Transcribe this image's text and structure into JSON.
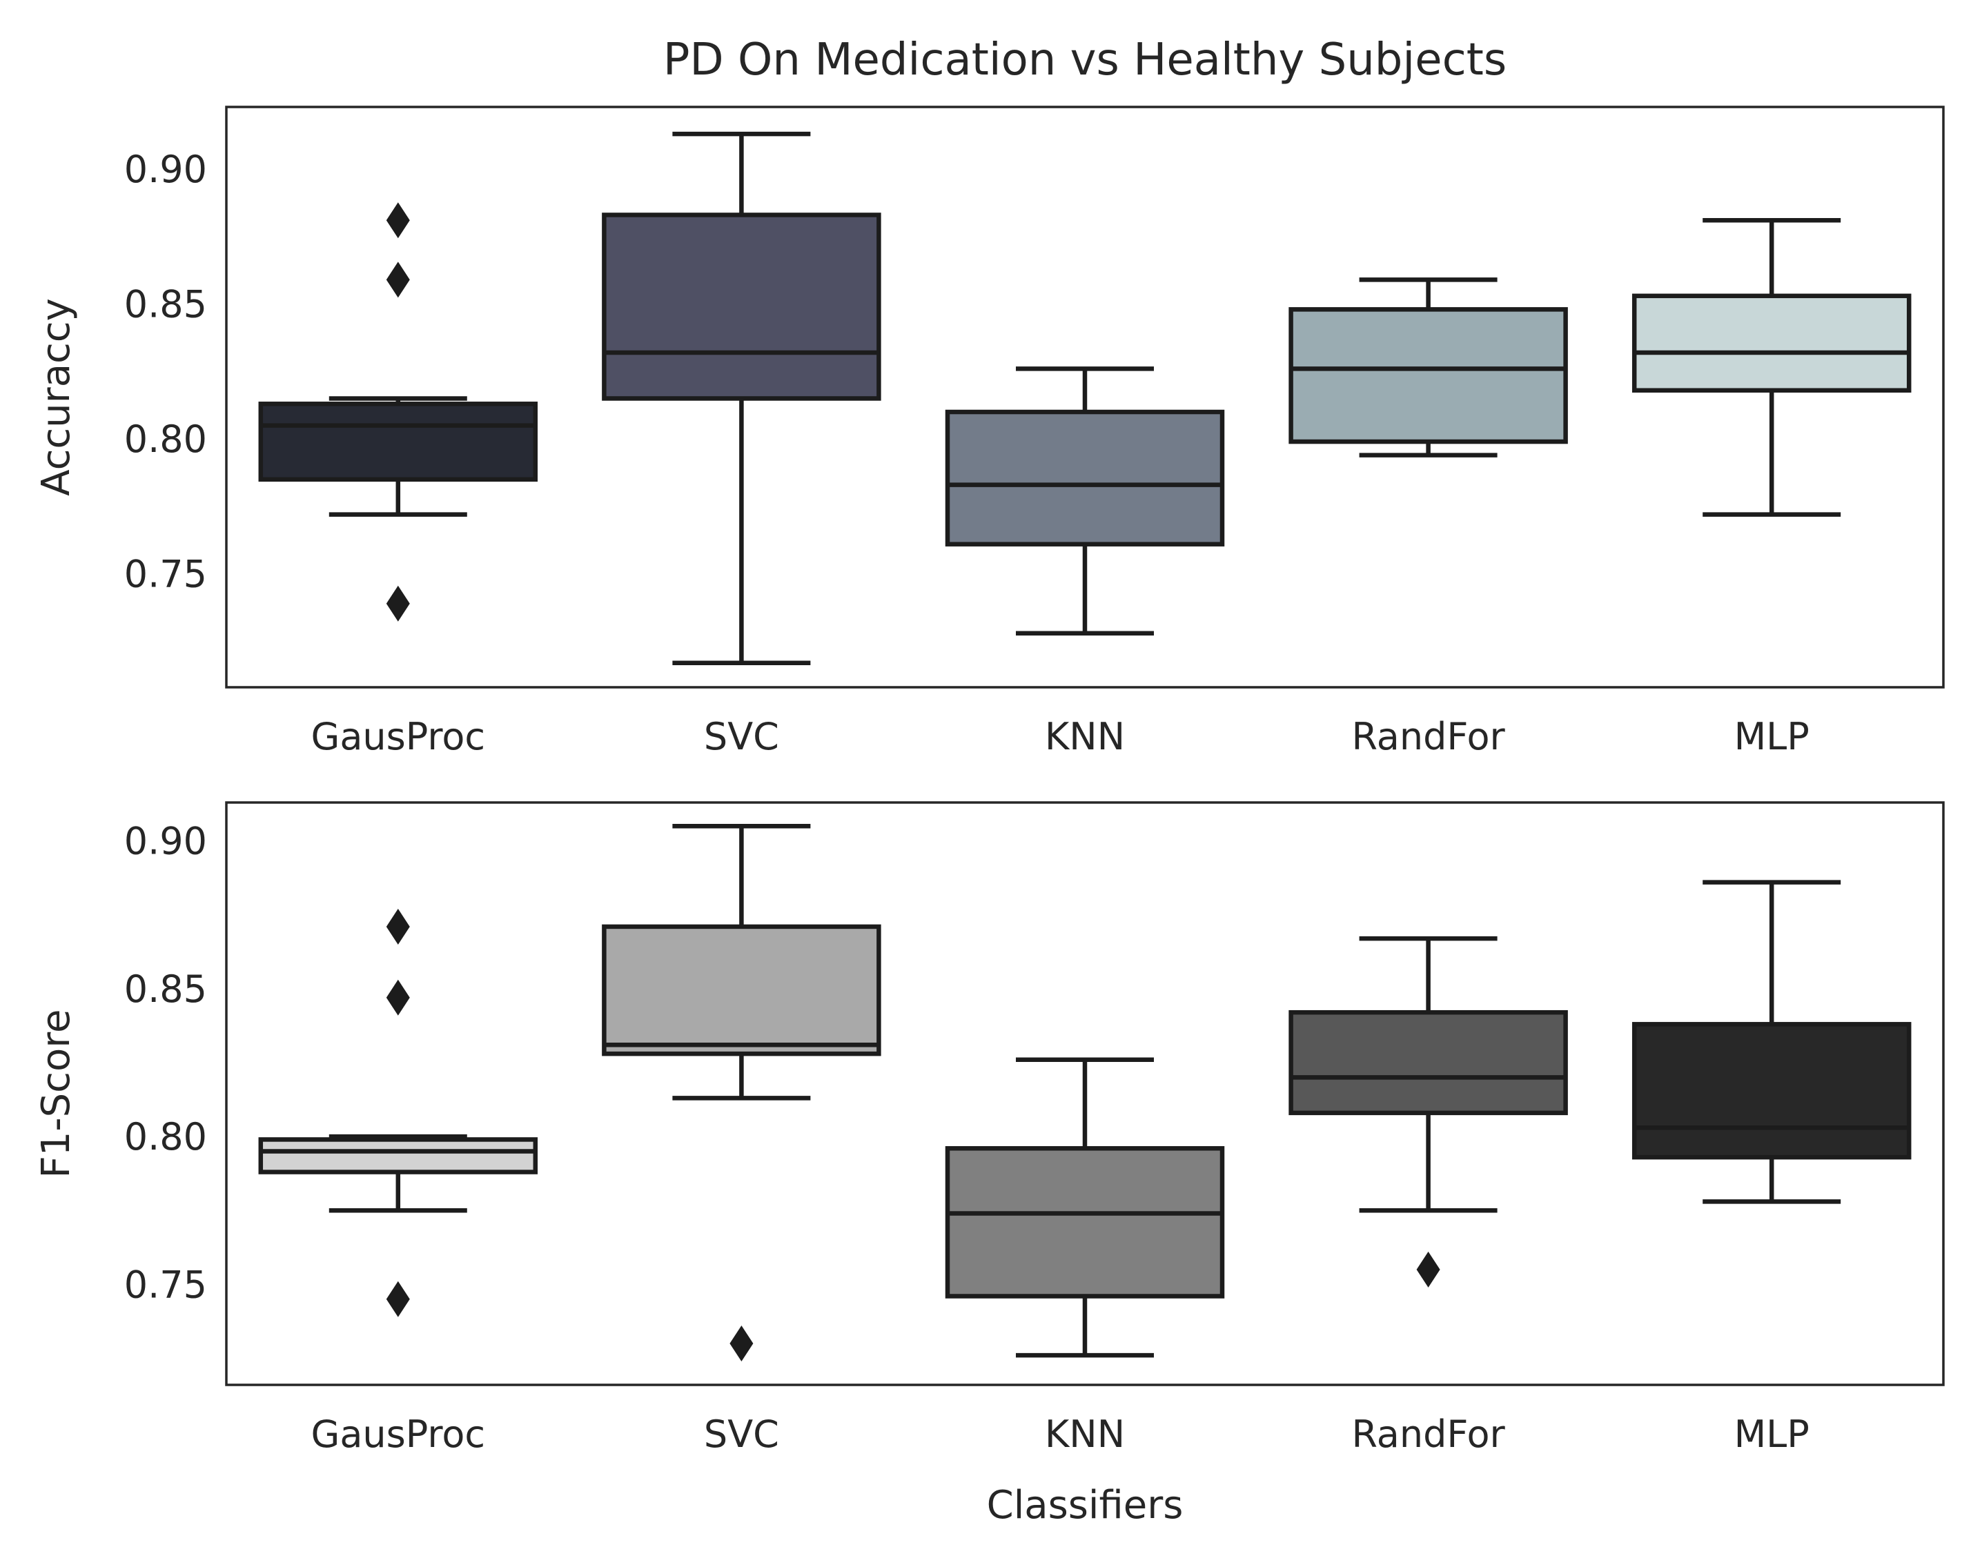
{
  "chart_data": {
    "type": "box",
    "title": "PD On Medication vs Healthy Subjects",
    "xlabel": "Classifiers",
    "categories": [
      "GausProc",
      "SVC",
      "KNN",
      "RandFor",
      "MLP"
    ],
    "panels": [
      {
        "ylabel": "Accuraccy",
        "ylim": [
          0.708,
          0.923
        ],
        "yticks": [
          0.75,
          0.8,
          0.85,
          0.9
        ],
        "ytick_labels": [
          "0.75",
          "0.80",
          "0.85",
          "0.90"
        ],
        "grid": false,
        "boxes": [
          {
            "category": "GausProc",
            "color": "#272a34",
            "whisker_low": 0.772,
            "q1": 0.785,
            "median": 0.805,
            "q3": 0.813,
            "whisker_high": 0.815,
            "outliers": [
              0.881,
              0.859,
              0.739
            ]
          },
          {
            "category": "SVC",
            "color": "#4f5064",
            "whisker_low": 0.717,
            "q1": 0.815,
            "median": 0.832,
            "q3": 0.883,
            "whisker_high": 0.913,
            "outliers": []
          },
          {
            "category": "KNN",
            "color": "#737c8a",
            "whisker_low": 0.728,
            "q1": 0.761,
            "median": 0.783,
            "q3": 0.81,
            "whisker_high": 0.826,
            "outliers": []
          },
          {
            "category": "RandFor",
            "color": "#9aacb2",
            "whisker_low": 0.794,
            "q1": 0.799,
            "median": 0.826,
            "q3": 0.848,
            "whisker_high": 0.859,
            "outliers": []
          },
          {
            "category": "MLP",
            "color": "#c8d7d8",
            "whisker_low": 0.772,
            "q1": 0.818,
            "median": 0.832,
            "q3": 0.853,
            "whisker_high": 0.881,
            "outliers": []
          }
        ]
      },
      {
        "ylabel": "F1-Score",
        "ylim": [
          0.716,
          0.913
        ],
        "yticks": [
          0.75,
          0.8,
          0.85,
          0.9
        ],
        "ytick_labels": [
          "0.75",
          "0.80",
          "0.85",
          "0.90"
        ],
        "grid": false,
        "boxes": [
          {
            "category": "GausProc",
            "color": "#d3d3d3",
            "whisker_low": 0.775,
            "q1": 0.788,
            "median": 0.795,
            "q3": 0.799,
            "whisker_high": 0.8,
            "outliers": [
              0.871,
              0.847,
              0.745
            ]
          },
          {
            "category": "SVC",
            "color": "#a9a9a9",
            "whisker_low": 0.813,
            "q1": 0.828,
            "median": 0.831,
            "q3": 0.871,
            "whisker_high": 0.905,
            "outliers": [
              0.73
            ]
          },
          {
            "category": "KNN",
            "color": "#808080",
            "whisker_low": 0.726,
            "q1": 0.746,
            "median": 0.774,
            "q3": 0.796,
            "whisker_high": 0.826,
            "outliers": []
          },
          {
            "category": "RandFor",
            "color": "#585858",
            "whisker_low": 0.775,
            "q1": 0.808,
            "median": 0.82,
            "q3": 0.842,
            "whisker_high": 0.867,
            "outliers": [
              0.755
            ]
          },
          {
            "category": "MLP",
            "color": "#282828",
            "whisker_low": 0.778,
            "q1": 0.793,
            "median": 0.803,
            "q3": 0.838,
            "whisker_high": 0.886,
            "outliers": []
          }
        ]
      }
    ]
  }
}
